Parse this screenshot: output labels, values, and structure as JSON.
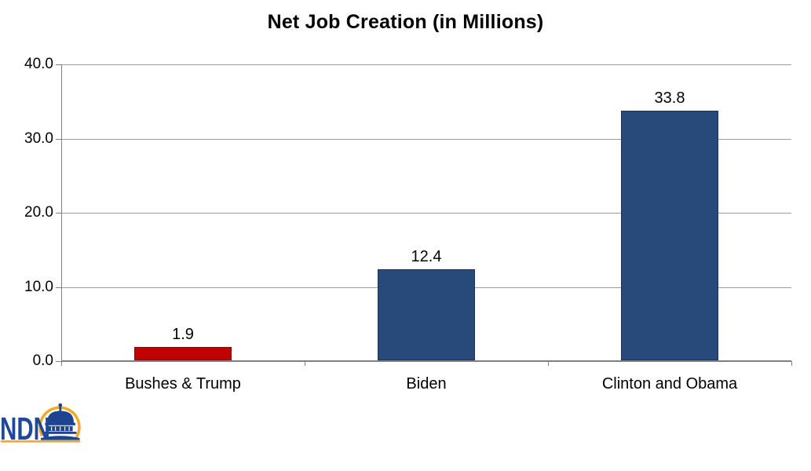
{
  "page": {
    "background": "#FFFFFF"
  },
  "chart_data": {
    "type": "bar",
    "title": "Net Job Creation (in Millions)",
    "categories": [
      "Bushes & Trump",
      "Biden",
      "Clinton and Obama"
    ],
    "values": [
      1.9,
      12.4,
      33.8
    ],
    "data_labels": [
      "1.9",
      "12.4",
      "33.8"
    ],
    "bar_colors": [
      "#C00000",
      "#274A7B",
      "#274A7B"
    ],
    "bar_border_colors": [
      "#7F0F0F",
      "#1C3356",
      "#1C3356"
    ],
    "xlabel": "",
    "ylabel": "",
    "ylim": [
      0,
      40
    ],
    "yticks": [
      0,
      10,
      20,
      30,
      40
    ],
    "ytick_labels": [
      "0.0",
      "10.0",
      "20.0",
      "30.0",
      "40.0"
    ],
    "grid": true,
    "legend": false
  },
  "colors": {
    "gridline": "#9B9B9B",
    "axis": "#7F7F7F",
    "text": "#000000"
  },
  "logo": {
    "text": "NDN",
    "blue": "#1F4899",
    "dome_blue": "#1E4490",
    "gold": "#F2A91D"
  }
}
